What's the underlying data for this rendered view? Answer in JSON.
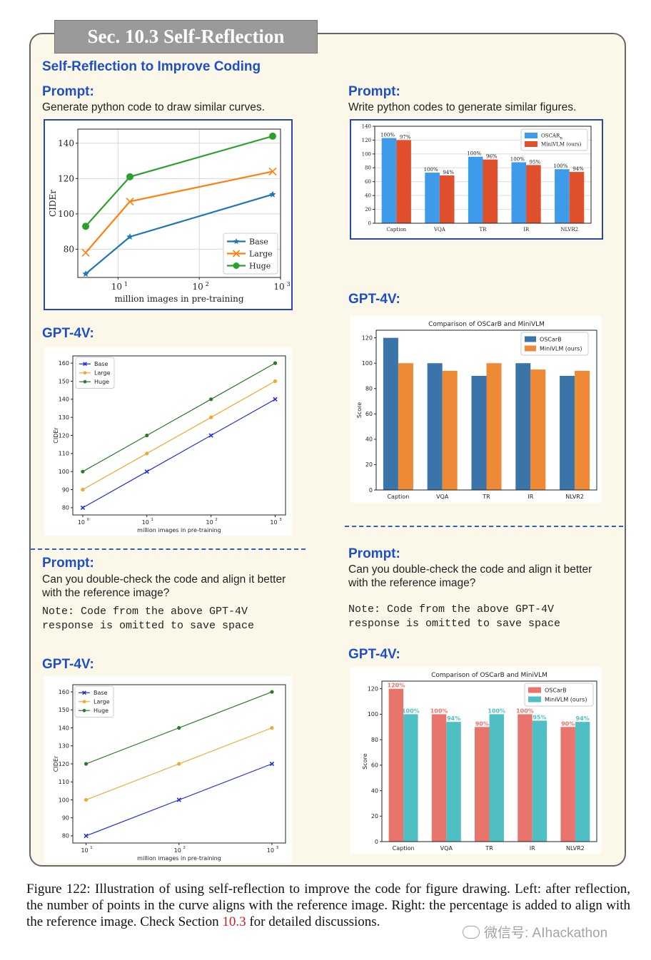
{
  "section_tab": "Sec. 10.3 Self-Reflection",
  "section_title": "Self-Reflection to Improve Coding",
  "left": {
    "prompt1_label": "Prompt:",
    "prompt1_text": "Generate python code to draw similar curves.",
    "gpt1_label": "GPT-4V:",
    "prompt2_label": "Prompt:",
    "prompt2_line1": "Can you double-check the code and align it better",
    "prompt2_line2": "with the reference image?",
    "note_line1": "Note: Code from the above GPT-4V",
    "note_line2": "response is omitted to save space",
    "gpt2_label": "GPT-4V:"
  },
  "right": {
    "prompt1_label": "Prompt:",
    "prompt1_text": "Write python codes to generate similar figures.",
    "gpt1_label": "GPT-4V:",
    "prompt2_label": "Prompt:",
    "prompt2_line1": "Can you double-check the code and align it better",
    "prompt2_line2": "with the reference image?",
    "note_line1": "Note: Code from the above GPT-4V",
    "note_line2": "response is omitted to save space",
    "gpt2_label": "GPT-4V:"
  },
  "caption": {
    "text_before": "Figure 122: Illustration of using self-reflection to improve the code for figure drawing. Left: after reflection, the number of points in the curve aligns with the reference image. Right: the percentage is added to align with the reference image. Check Section ",
    "section_ref": "10.3",
    "text_after": " for detailed discussions."
  },
  "watermark": "微信号: AIhackathon",
  "colors": {
    "accent_blue": "#1f4fc4",
    "panel_bg": "#fbf8ea",
    "mpl_blue": "#1f77b4",
    "mpl_orange": "#ff7f0e",
    "mpl_green": "#2ca02c",
    "mpl_red": "#d62728",
    "oscar_blue": "#3d9be9",
    "minivlm_red": "#e0502c",
    "pastel_red": "#e8746b",
    "pastel_teal": "#4fbfc4",
    "line_blue": "#2030d8",
    "line_orange": "#f0a830",
    "line_green": "#2a7a2a"
  },
  "chart_data": [
    {
      "id": "ref-line",
      "type": "line",
      "title": "",
      "xlabel": "million images in pre-training",
      "ylabel": "CIDEr",
      "xscale": "log",
      "xlim": [
        3.2,
        1000
      ],
      "ylim": [
        64,
        148
      ],
      "yticks": [
        80,
        100,
        120,
        140
      ],
      "xticks": [
        10,
        100,
        1000
      ],
      "xtick_labels": [
        "10",
        "10",
        "10"
      ],
      "xtick_exponents": [
        "1",
        "2",
        "3"
      ],
      "grid": true,
      "legend_position": "lower-right",
      "series": [
        {
          "name": "Base",
          "x": [
            4,
            14,
            800
          ],
          "y": [
            66,
            87,
            111
          ],
          "color": "#1f77b4",
          "marker": "star"
        },
        {
          "name": "Large",
          "x": [
            4,
            14,
            800
          ],
          "y": [
            78,
            107,
            124
          ],
          "color": "#ff7f0e",
          "marker": "x"
        },
        {
          "name": "Huge",
          "x": [
            4,
            14,
            800
          ],
          "y": [
            93,
            121,
            144
          ],
          "color": "#2ca02c",
          "marker": "circle"
        }
      ]
    },
    {
      "id": "gpt-line-1",
      "type": "line",
      "title": "",
      "xlabel": "million images in pre-training",
      "ylabel": "CIDEr",
      "xscale": "log",
      "xlim": [
        0.7,
        1450
      ],
      "ylim": [
        76,
        164
      ],
      "yticks": [
        80,
        90,
        100,
        110,
        120,
        130,
        140,
        150,
        160
      ],
      "xticks": [
        1,
        10,
        100,
        1000
      ],
      "xtick_labels": [
        "10",
        "10",
        "10",
        "10"
      ],
      "xtick_exponents": [
        "0",
        "1",
        "2",
        "3"
      ],
      "grid": false,
      "legend_position": "top-left",
      "series": [
        {
          "name": "Base",
          "x": [
            1,
            10,
            100,
            1000
          ],
          "y": [
            80,
            100,
            120,
            140
          ],
          "color": "#2030d8",
          "marker": "x"
        },
        {
          "name": "Large",
          "x": [
            1,
            10,
            100,
            1000
          ],
          "y": [
            90,
            110,
            130,
            150
          ],
          "color": "#f0a830",
          "marker": "circle"
        },
        {
          "name": "Huge",
          "x": [
            1,
            10,
            100,
            1000
          ],
          "y": [
            100,
            120,
            140,
            160
          ],
          "color": "#2a7a2a",
          "marker": "circle"
        }
      ]
    },
    {
      "id": "gpt-line-2",
      "type": "line",
      "title": "",
      "xlabel": "million images in pre-training",
      "ylabel": "CIDEr",
      "xscale": "log",
      "xlim": [
        7.2,
        1400
      ],
      "ylim": [
        76,
        164
      ],
      "yticks": [
        80,
        90,
        100,
        110,
        120,
        130,
        140,
        150,
        160
      ],
      "xticks": [
        10,
        100,
        1000
      ],
      "xtick_labels": [
        "10",
        "10",
        "10"
      ],
      "xtick_exponents": [
        "1",
        "2",
        "3"
      ],
      "grid": false,
      "legend_position": "top-left",
      "series": [
        {
          "name": "Base",
          "x": [
            10,
            100,
            1000
          ],
          "y": [
            80,
            100,
            120
          ],
          "color": "#2030d8",
          "marker": "x"
        },
        {
          "name": "Large",
          "x": [
            10,
            100,
            1000
          ],
          "y": [
            100,
            120,
            140
          ],
          "color": "#f0a830",
          "marker": "circle"
        },
        {
          "name": "Huge",
          "x": [
            10,
            100,
            1000
          ],
          "y": [
            120,
            140,
            160
          ],
          "color": "#2a7a2a",
          "marker": "circle"
        }
      ]
    },
    {
      "id": "ref-bar",
      "type": "bar",
      "title": "",
      "xlabel": "",
      "ylabel": "",
      "categories": [
        "Caption",
        "VQA",
        "TR",
        "IR",
        "NLVR2"
      ],
      "ylim": [
        0,
        140
      ],
      "yticks": [
        0,
        20,
        40,
        60,
        80,
        100,
        120,
        140
      ],
      "grid": true,
      "legend_position": "top-right",
      "series": [
        {
          "name": "OSCAR",
          "name_subscript": "B",
          "values": [
            123,
            73,
            96,
            88,
            78
          ],
          "labels": [
            "100%",
            "100%",
            "100%",
            "100%",
            "100%"
          ],
          "color": "#3d9be9"
        },
        {
          "name": "MiniVLM (ours)",
          "values": [
            120,
            69,
            92,
            84,
            74
          ],
          "labels": [
            "97%",
            "94%",
            "96%",
            "95%",
            "94%"
          ],
          "color": "#e0502c"
        }
      ]
    },
    {
      "id": "gpt-bar-1",
      "type": "bar",
      "title": "Comparison of OSCarB and MiniVLM",
      "xlabel": "",
      "ylabel": "Score",
      "categories": [
        "Caption",
        "VQA",
        "TR",
        "IR",
        "NLVR2"
      ],
      "ylim": [
        0,
        126
      ],
      "yticks": [
        0,
        20,
        40,
        60,
        80,
        100,
        120
      ],
      "grid": false,
      "legend_position": "top-right",
      "series": [
        {
          "name": "OSCarB",
          "values": [
            120,
            100,
            90,
            100,
            90
          ],
          "color": "#3a74a8"
        },
        {
          "name": "MiniVLM (ours)",
          "values": [
            100,
            94,
            100,
            95,
            94
          ],
          "color": "#ee8a35"
        }
      ]
    },
    {
      "id": "gpt-bar-2",
      "type": "bar",
      "title": "Comparison of OSCarB and MiniVLM",
      "xlabel": "",
      "ylabel": "Score",
      "categories": [
        "Caption",
        "VQA",
        "TR",
        "IR",
        "NLVR2"
      ],
      "ylim": [
        0,
        126
      ],
      "yticks": [
        0,
        20,
        40,
        60,
        80,
        100,
        120
      ],
      "grid": false,
      "legend_position": "top-right",
      "series": [
        {
          "name": "OSCarB",
          "values": [
            120,
            100,
            90,
            100,
            90
          ],
          "labels": [
            "120%",
            "100%",
            "90%",
            "100%",
            "90%"
          ],
          "color": "#e8746b"
        },
        {
          "name": "MiniVLM (ours)",
          "values": [
            100,
            94,
            100,
            95,
            94
          ],
          "labels": [
            "100%",
            "94%",
            "100%",
            "95%",
            "94%"
          ],
          "color": "#4fbfc4"
        }
      ]
    }
  ]
}
